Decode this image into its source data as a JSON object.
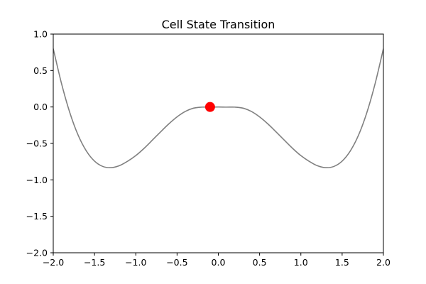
{
  "chart_data": {
    "type": "line",
    "title": "Cell State Transition",
    "xlabel": "",
    "ylabel": "",
    "xlim": [
      -2.0,
      2.0
    ],
    "ylim": [
      -2.0,
      1.0
    ],
    "grid": false,
    "x_ticks": [
      -2.0,
      -1.5,
      -1.0,
      -0.5,
      0.0,
      0.5,
      1.0,
      1.5,
      2.0
    ],
    "x_tick_labels": [
      "−2.0",
      "−1.5",
      "−1.0",
      "−0.5",
      "0.0",
      "0.5",
      "1.0",
      "1.5",
      "2.0"
    ],
    "y_ticks": [
      -2.0,
      -1.5,
      -1.0,
      -0.5,
      0.0,
      0.5,
      1.0
    ],
    "y_tick_labels": [
      "−2.0",
      "−1.5",
      "−1.0",
      "−0.5",
      "0.0",
      "0.5",
      "1.0"
    ],
    "series": [
      {
        "color": "#808080",
        "x": [
          -2.0,
          -1.9,
          -1.8,
          -1.7,
          -1.6,
          -1.5,
          -1.4,
          -1.3,
          -1.2,
          -1.1,
          -1.0,
          -0.9,
          -0.8,
          -0.7,
          -0.6,
          -0.5,
          -0.4,
          -0.3,
          -0.2,
          -0.1,
          0.0,
          0.1,
          0.2,
          0.3,
          0.4,
          0.5,
          0.6,
          0.7,
          0.8,
          0.9,
          1.0,
          1.1,
          1.2,
          1.3,
          1.4,
          1.5,
          1.6,
          1.7,
          1.8,
          1.9,
          2.0
        ],
        "y": [
          0.8,
          0.322,
          -0.075,
          -0.383,
          -0.602,
          -0.743,
          -0.816,
          -0.833,
          -0.806,
          -0.745,
          -0.667,
          -0.568,
          -0.456,
          -0.342,
          -0.232,
          -0.136,
          -0.061,
          -0.016,
          -0.002,
          -0.002,
          0.0,
          -0.002,
          -0.002,
          -0.016,
          -0.061,
          -0.136,
          -0.232,
          -0.342,
          -0.456,
          -0.568,
          -0.667,
          -0.745,
          -0.806,
          -0.833,
          -0.816,
          -0.743,
          -0.602,
          -0.383,
          -0.075,
          0.322,
          0.8
        ]
      }
    ],
    "marker": {
      "x": -0.1,
      "y": 0.0,
      "color": "#ff0000"
    }
  }
}
